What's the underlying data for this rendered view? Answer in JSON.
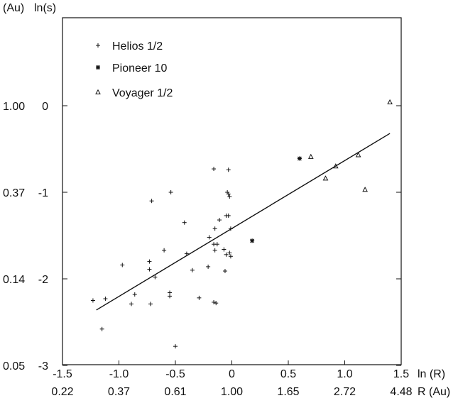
{
  "chart_data": {
    "type": "scatter",
    "title": "",
    "xlabel": "ln (R)",
    "xlabel_secondary": "R (Au)",
    "ylabel": "ln(s)",
    "ylabel_secondary": "(Au)",
    "xlim": [
      -1.5,
      1.5
    ],
    "ylim": [
      -3,
      0.5
    ],
    "x_ticks": [
      {
        "value": -1.5,
        "label": "-1.5",
        "secondary": "0.22"
      },
      {
        "value": -1.0,
        "label": "-1.0",
        "secondary": "0.37"
      },
      {
        "value": -0.5,
        "label": "-0.5",
        "secondary": "0.61"
      },
      {
        "value": 0.0,
        "label": "0",
        "secondary": "1.00"
      },
      {
        "value": 0.5,
        "label": "0.5",
        "secondary": "1.65"
      },
      {
        "value": 1.0,
        "label": "1.0",
        "secondary": "2.72"
      },
      {
        "value": 1.5,
        "label": "1.5",
        "secondary": "4.48"
      }
    ],
    "y_ticks": [
      {
        "value": 0,
        "label": "0",
        "secondary": "1.00"
      },
      {
        "value": -1,
        "label": "-1",
        "secondary": "0.37"
      },
      {
        "value": -2,
        "label": "-2",
        "secondary": "0.14"
      },
      {
        "value": -3,
        "label": "-3",
        "secondary": "0.05"
      }
    ],
    "grid": false,
    "legend": "top-left",
    "series": [
      {
        "name": "Helios 1/2",
        "marker": "plus",
        "points": [
          [
            -0.16,
            -0.73
          ],
          [
            -0.03,
            -0.74
          ],
          [
            -0.04,
            -1.0
          ],
          [
            -0.03,
            -1.02
          ],
          [
            -0.02,
            -1.05
          ],
          [
            -0.05,
            -1.27
          ],
          [
            -0.03,
            -1.27
          ],
          [
            -0.11,
            -1.32
          ],
          [
            -0.15,
            -1.42
          ],
          [
            -0.01,
            -1.42
          ],
          [
            -0.2,
            -1.52
          ],
          [
            -0.13,
            -1.6
          ],
          [
            -0.16,
            -1.6
          ],
          [
            -0.15,
            -1.67
          ],
          [
            -0.07,
            -1.66
          ],
          [
            -0.02,
            -1.7
          ],
          [
            -0.05,
            -1.72
          ],
          [
            -0.01,
            -1.74
          ],
          [
            -0.42,
            -1.35
          ],
          [
            -0.71,
            -1.1
          ],
          [
            -0.54,
            -1.0
          ],
          [
            -0.6,
            -1.67
          ],
          [
            -0.4,
            -1.71
          ],
          [
            -0.35,
            -1.9
          ],
          [
            -0.21,
            -1.86
          ],
          [
            -0.97,
            -1.84
          ],
          [
            -0.73,
            -1.8
          ],
          [
            -0.73,
            -1.89
          ],
          [
            -0.68,
            -1.98
          ],
          [
            -0.55,
            -2.16
          ],
          [
            -0.55,
            -2.2
          ],
          [
            -0.29,
            -2.22
          ],
          [
            -0.16,
            -2.27
          ],
          [
            -0.14,
            -2.28
          ],
          [
            -0.06,
            -1.91
          ],
          [
            -0.72,
            -2.29
          ],
          [
            -0.86,
            -2.18
          ],
          [
            -0.89,
            -2.29
          ],
          [
            -1.12,
            -2.23
          ],
          [
            -1.23,
            -2.25
          ],
          [
            -1.15,
            -2.58
          ],
          [
            -0.5,
            -2.78
          ]
        ]
      },
      {
        "name": "Pioneer 10",
        "marker": "star",
        "points": [
          [
            0.18,
            -1.56
          ],
          [
            0.6,
            -0.61
          ]
        ]
      },
      {
        "name": "Voyager 1/2",
        "marker": "triangle",
        "points": [
          [
            0.7,
            -0.59
          ],
          [
            0.83,
            -0.84
          ],
          [
            0.92,
            -0.7
          ],
          [
            1.12,
            -0.57
          ],
          [
            1.18,
            -0.97
          ],
          [
            1.4,
            0.04
          ]
        ]
      }
    ],
    "fit_line": {
      "x": [
        -1.2,
        1.4
      ],
      "y": [
        -2.36,
        -0.32
      ]
    }
  }
}
